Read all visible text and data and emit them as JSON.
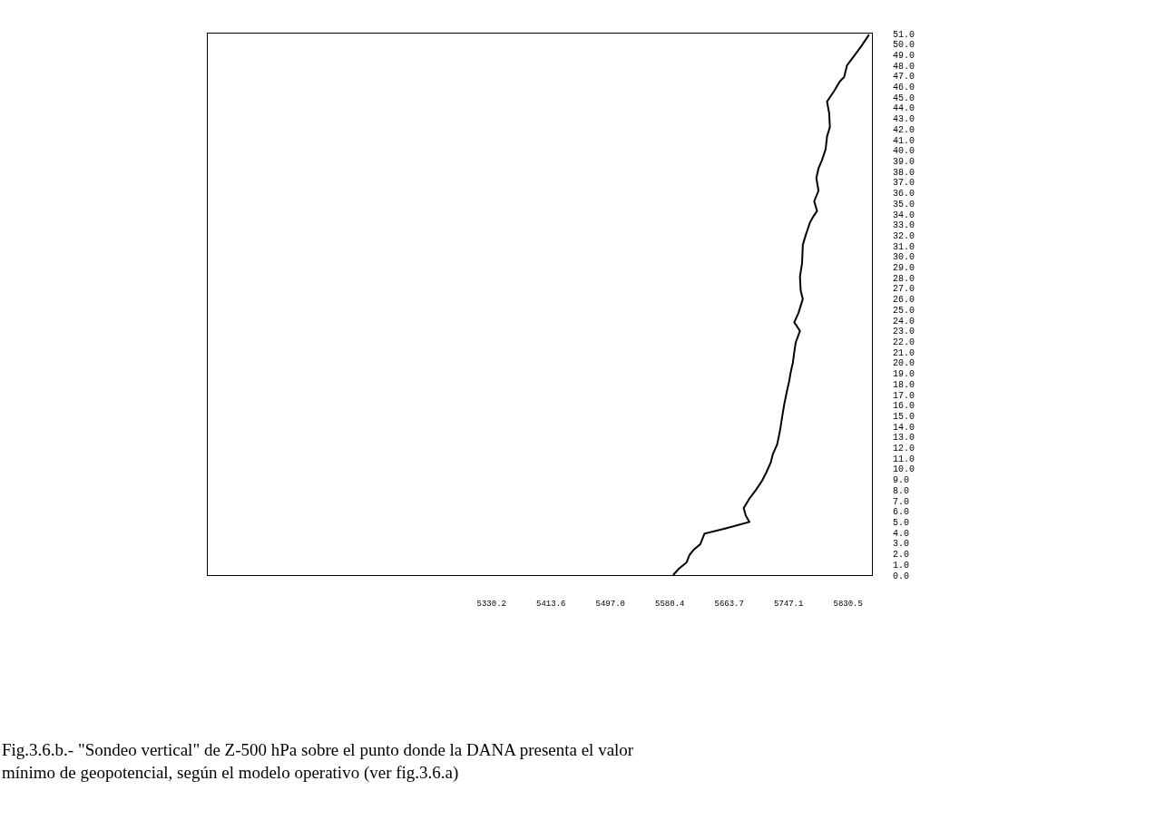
{
  "chart_data": {
    "type": "line",
    "x": [
      5585,
      5593,
      5604,
      5608,
      5614,
      5623,
      5629,
      5659,
      5692,
      5687,
      5684,
      5692,
      5701,
      5710,
      5716,
      5722,
      5725,
      5731,
      5735,
      5738,
      5741,
      5745,
      5748,
      5750,
      5753,
      5755,
      5757,
      5763,
      5755,
      5761,
      5767,
      5764,
      5763,
      5766,
      5767,
      5771,
      5777,
      5782,
      5787,
      5783,
      5789,
      5786,
      5789,
      5794,
      5799,
      5801,
      5805,
      5804,
      5801,
      5811,
      5819,
      5825,
      5829,
      5839,
      5850,
      5860
    ],
    "series": [
      {
        "color": "#000000",
        "values": [
          0,
          0.6,
          1.2,
          1.9,
          2.4,
          2.9,
          3.9,
          4.4,
          5.0,
          5.6,
          6.3,
          7.2,
          8.0,
          8.9,
          9.7,
          10.6,
          11.4,
          12.3,
          13.6,
          14.9,
          16.1,
          17.4,
          18.3,
          19.1,
          20.0,
          21.0,
          21.9,
          23.0,
          23.8,
          24.7,
          26.0,
          26.8,
          28.1,
          29.4,
          31.1,
          32.0,
          33.2,
          33.8,
          34.3,
          35.2,
          36.2,
          37.4,
          38.3,
          39.1,
          40.1,
          41.3,
          42.2,
          43.5,
          44.6,
          45.6,
          46.5,
          46.9,
          48.0,
          48.9,
          49.9,
          50.9
        ]
      }
    ],
    "xlim": [
      4932,
      5864
    ],
    "ylim": [
      0,
      51
    ],
    "xticks": [
      {
        "value": 5330.2,
        "label": "5330.2"
      },
      {
        "value": 5413.6,
        "label": "5413.6"
      },
      {
        "value": 5497.0,
        "label": "5497.0"
      },
      {
        "value": 5580.4,
        "label": "5580.4"
      },
      {
        "value": 5663.7,
        "label": "5663.7"
      },
      {
        "value": 5747.1,
        "label": "5747.1"
      },
      {
        "value": 5830.5,
        "label": "5830.5"
      }
    ],
    "yticks": [
      {
        "value": 0,
        "label": "0.0"
      },
      {
        "value": 1,
        "label": "1.0"
      },
      {
        "value": 2,
        "label": "2.0"
      },
      {
        "value": 3,
        "label": "3.0"
      },
      {
        "value": 4,
        "label": "4.0"
      },
      {
        "value": 5,
        "label": "5.0"
      },
      {
        "value": 6,
        "label": "6.0"
      },
      {
        "value": 7,
        "label": "7.0"
      },
      {
        "value": 8,
        "label": "8.0"
      },
      {
        "value": 9,
        "label": "9.0"
      },
      {
        "value": 10,
        "label": "10.0"
      },
      {
        "value": 11,
        "label": "11.0"
      },
      {
        "value": 12,
        "label": "12.0"
      },
      {
        "value": 13,
        "label": "13.0"
      },
      {
        "value": 14,
        "label": "14.0"
      },
      {
        "value": 15,
        "label": "15.0"
      },
      {
        "value": 16,
        "label": "16.0"
      },
      {
        "value": 17,
        "label": "17.0"
      },
      {
        "value": 18,
        "label": "18.0"
      },
      {
        "value": 19,
        "label": "19.0"
      },
      {
        "value": 20,
        "label": "20.0"
      },
      {
        "value": 21,
        "label": "21.0"
      },
      {
        "value": 22,
        "label": "22.0"
      },
      {
        "value": 23,
        "label": "23.0"
      },
      {
        "value": 24,
        "label": "24.0"
      },
      {
        "value": 25,
        "label": "25.0"
      },
      {
        "value": 26,
        "label": "26.0"
      },
      {
        "value": 27,
        "label": "27.0"
      },
      {
        "value": 28,
        "label": "28.0"
      },
      {
        "value": 29,
        "label": "29.0"
      },
      {
        "value": 30,
        "label": "30.0"
      },
      {
        "value": 31,
        "label": "31.0"
      },
      {
        "value": 32,
        "label": "32.0"
      },
      {
        "value": 33,
        "label": "33.0"
      },
      {
        "value": 34,
        "label": "34.0"
      },
      {
        "value": 35,
        "label": "35.0"
      },
      {
        "value": 36,
        "label": "36.0"
      },
      {
        "value": 37,
        "label": "37.0"
      },
      {
        "value": 38,
        "label": "38.0"
      },
      {
        "value": 39,
        "label": "39.0"
      },
      {
        "value": 40,
        "label": "40.0"
      },
      {
        "value": 41,
        "label": "41.0"
      },
      {
        "value": 42,
        "label": "42.0"
      },
      {
        "value": 43,
        "label": "43.0"
      },
      {
        "value": 44,
        "label": "44.0"
      },
      {
        "value": 45,
        "label": "45.0"
      },
      {
        "value": 46,
        "label": "46.0"
      },
      {
        "value": 47,
        "label": "47.0"
      },
      {
        "value": 48,
        "label": "48.0"
      },
      {
        "value": 49,
        "label": "49.0"
      },
      {
        "value": 50,
        "label": "50.0"
      },
      {
        "value": 51,
        "label": "51.0"
      }
    ],
    "annotations": [
      "Fig.3.6.b.- \"Sondeo vertical\" de Z-500 hPa sobre el punto donde la DANA presenta el valor mínimo de geopotencial, según el modelo operativo (ver fig.3.6.a)"
    ]
  }
}
